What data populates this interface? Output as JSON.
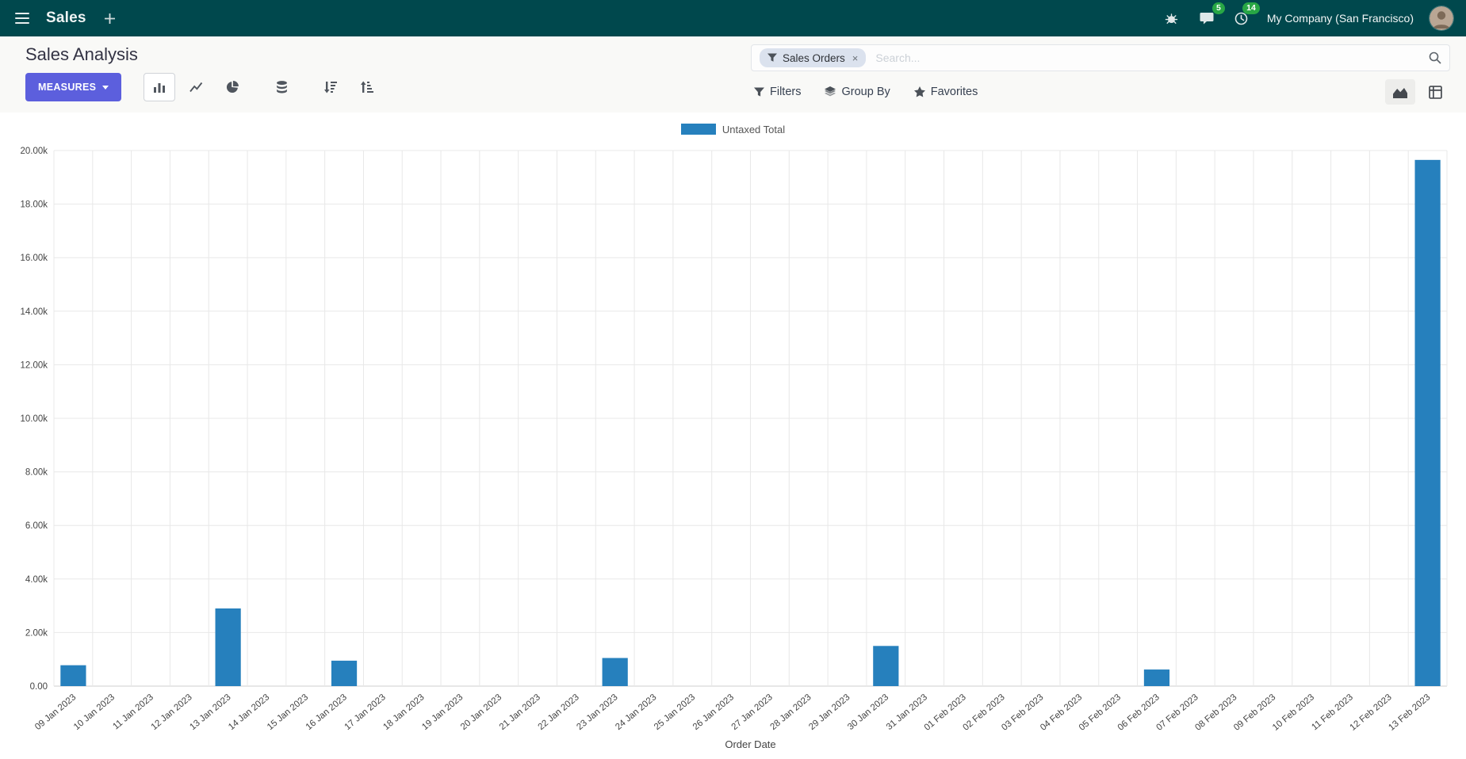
{
  "colors": {
    "navbar_bg": "#00484d",
    "primary": "#5c5fdd",
    "badge": "#28a745",
    "facet_bg": "#dbe2ee"
  },
  "navbar": {
    "app_name": "Sales",
    "company": "My Company (San Francisco)",
    "chat_badge": "5",
    "activity_badge": "14"
  },
  "control_panel": {
    "title": "Sales Analysis",
    "measures_label": "MEASURES",
    "search": {
      "facet": "Sales Orders",
      "facet_remove": "×",
      "placeholder": "Search..."
    },
    "filters_label": "Filters",
    "group_by_label": "Group By",
    "favorites_label": "Favorites"
  },
  "chart_data": {
    "type": "bar",
    "title": "",
    "xlabel": "Order Date",
    "ylabel": "",
    "legend": [
      "Untaxed Total"
    ],
    "legend_position": "top-center",
    "grid": true,
    "ylim": [
      0,
      20000
    ],
    "ytick_step": 2000,
    "ytick_labels": [
      "0.00",
      "2.00k",
      "4.00k",
      "6.00k",
      "8.00k",
      "10.00k",
      "12.00k",
      "14.00k",
      "16.00k",
      "18.00k",
      "20.00k"
    ],
    "bar_color": "#2680bd",
    "categories": [
      "09 Jan 2023",
      "10 Jan 2023",
      "11 Jan 2023",
      "12 Jan 2023",
      "13 Jan 2023",
      "14 Jan 2023",
      "15 Jan 2023",
      "16 Jan 2023",
      "17 Jan 2023",
      "18 Jan 2023",
      "19 Jan 2023",
      "20 Jan 2023",
      "21 Jan 2023",
      "22 Jan 2023",
      "23 Jan 2023",
      "24 Jan 2023",
      "25 Jan 2023",
      "26 Jan 2023",
      "27 Jan 2023",
      "28 Jan 2023",
      "29 Jan 2023",
      "30 Jan 2023",
      "31 Jan 2023",
      "01 Feb 2023",
      "02 Feb 2023",
      "03 Feb 2023",
      "04 Feb 2023",
      "05 Feb 2023",
      "06 Feb 2023",
      "07 Feb 2023",
      "08 Feb 2023",
      "09 Feb 2023",
      "10 Feb 2023",
      "11 Feb 2023",
      "12 Feb 2023",
      "13 Feb 2023"
    ],
    "values": [
      780,
      0,
      0,
      0,
      2900,
      0,
      0,
      950,
      0,
      0,
      0,
      0,
      0,
      0,
      1050,
      0,
      0,
      0,
      0,
      0,
      0,
      1500,
      0,
      0,
      0,
      0,
      0,
      0,
      620,
      0,
      0,
      0,
      0,
      0,
      0,
      19650
    ]
  }
}
